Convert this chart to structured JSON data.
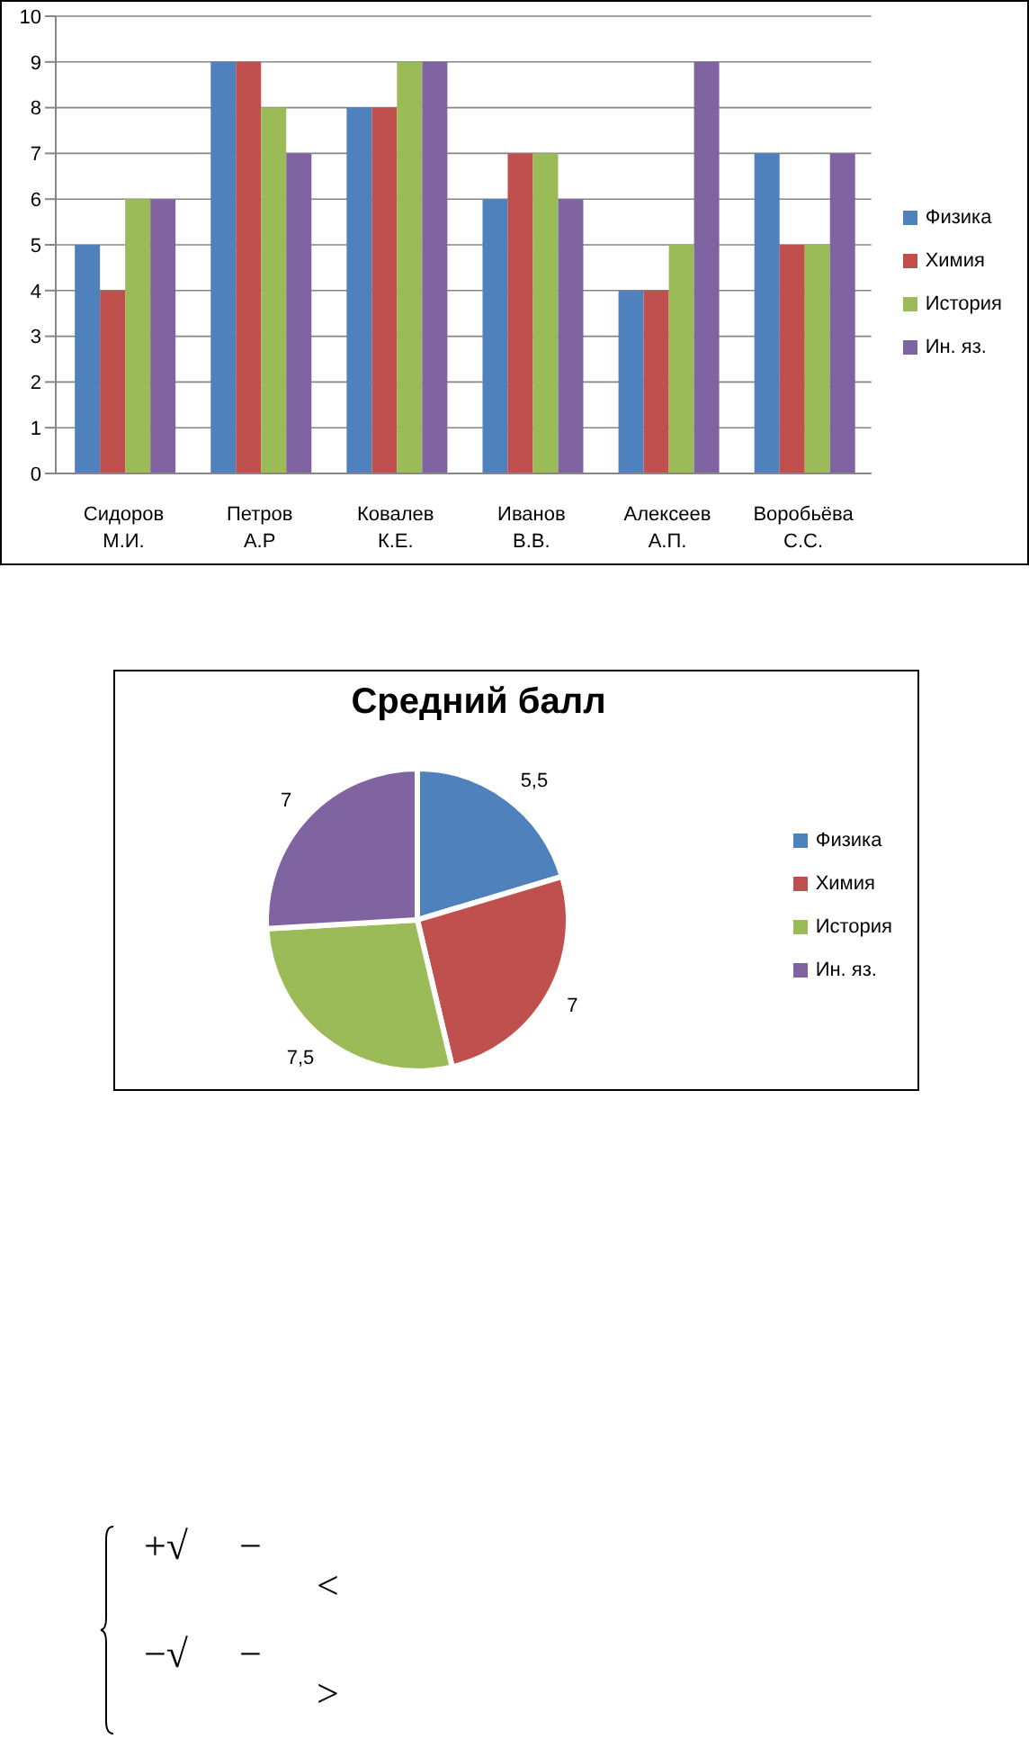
{
  "chart_data": [
    {
      "type": "bar",
      "categories": [
        "Сидоров М.И.",
        "Петров А.Р",
        "Ковалев К.Е.",
        "Иванов В.В.",
        "Алексеев А.П.",
        "Воробьёва С.С."
      ],
      "series": [
        {
          "name": "Физика",
          "color": "#4f81bd",
          "values": [
            5,
            9,
            8,
            6,
            4,
            7
          ]
        },
        {
          "name": "Химия",
          "color": "#c0504d",
          "values": [
            4,
            9,
            8,
            7,
            4,
            5
          ]
        },
        {
          "name": "История",
          "color": "#9bbb59",
          "values": [
            6,
            8,
            9,
            7,
            5,
            5
          ]
        },
        {
          "name": "Ин. яз.",
          "color": "#8064a2",
          "values": [
            6,
            7,
            9,
            6,
            9,
            7
          ]
        }
      ],
      "ylim": [
        0,
        10
      ],
      "yticks": [
        0,
        1,
        2,
        3,
        4,
        5,
        6,
        7,
        8,
        9,
        10
      ],
      "grid": "y",
      "legend": "right"
    },
    {
      "type": "pie",
      "title": "Средний балл",
      "categories": [
        "Физика",
        "Химия",
        "История",
        "Ин. яз."
      ],
      "values": [
        5.5,
        7,
        7.5,
        7
      ],
      "colors": [
        "#4f81bd",
        "#c0504d",
        "#9bbb59",
        "#8064a2"
      ],
      "value_labels": [
        "5,5",
        "7",
        "7,5",
        "7"
      ],
      "legend": "right"
    },
    {
      "type": "other",
      "annotations": [
        "+√",
        "−",
        "<",
        "−√",
        "−",
        ">"
      ]
    }
  ]
}
